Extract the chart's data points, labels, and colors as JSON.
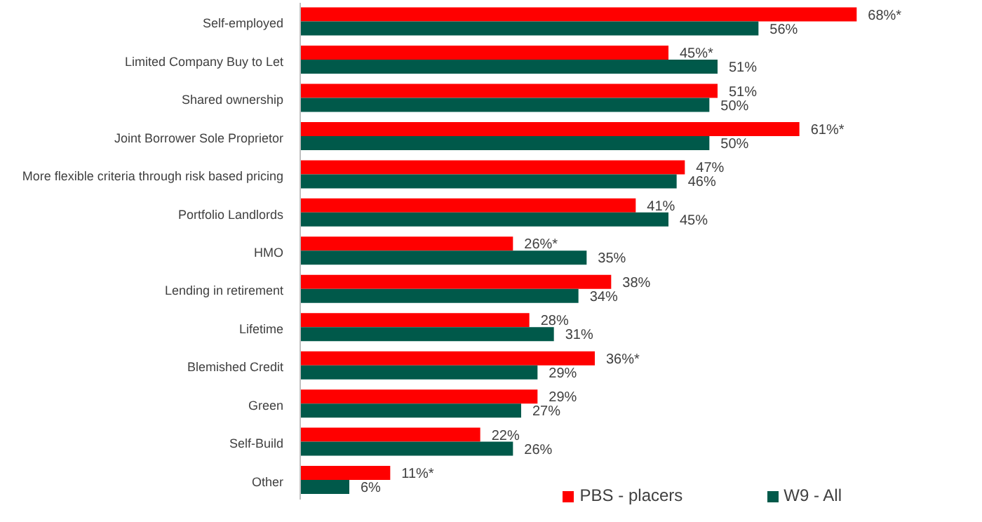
{
  "chart_data": {
    "type": "bar",
    "orientation": "horizontal",
    "categories": [
      "Self-employed",
      "Limited Company Buy to Let",
      "Shared ownership",
      "Joint Borrower Sole Proprietor",
      "More flexible criteria through risk based pricing",
      "Portfolio Landlords",
      "HMO",
      "Lending in retirement",
      "Lifetime",
      "Blemished Credit",
      "Green",
      "Self-Build",
      "Other"
    ],
    "series": [
      {
        "name": "PBS - placers",
        "color": "#ff0000",
        "values": [
          68,
          45,
          51,
          61,
          47,
          41,
          26,
          38,
          28,
          36,
          29,
          22,
          11
        ],
        "value_labels": [
          "68%*",
          "45%*",
          "51%",
          "61%*",
          "47%",
          "41%",
          "26%*",
          "38%",
          "28%",
          "36%*",
          "29%",
          "22%",
          "11%*"
        ]
      },
      {
        "name": "W9 - All",
        "color": "#00594a",
        "values": [
          56,
          51,
          50,
          50,
          46,
          45,
          35,
          34,
          31,
          29,
          27,
          26,
          6
        ],
        "value_labels": [
          "56%",
          "51%",
          "50%",
          "50%",
          "46%",
          "45%",
          "35%",
          "34%",
          "31%",
          "29%",
          "27%",
          "26%",
          "6%"
        ]
      }
    ],
    "legend": "bottom right",
    "grid": false
  }
}
